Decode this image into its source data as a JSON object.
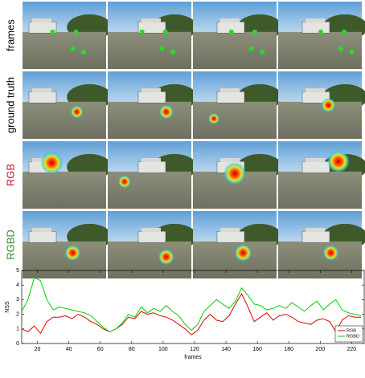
{
  "rows": [
    {
      "label": "frames",
      "color": "#000000"
    },
    {
      "label": "ground truth",
      "color": "#000000"
    },
    {
      "label": "RGB",
      "color": "#c8102e"
    },
    {
      "label": "RGBD",
      "color": "#2e8b22"
    }
  ],
  "chart_data": {
    "type": "line",
    "xlabel": "frames",
    "ylabel": "NSS",
    "x": [
      10,
      14,
      18,
      22,
      26,
      30,
      34,
      38,
      42,
      46,
      50,
      54,
      58,
      62,
      66,
      70,
      74,
      78,
      82,
      86,
      90,
      94,
      98,
      102,
      106,
      110,
      114,
      118,
      122,
      126,
      130,
      134,
      138,
      142,
      146,
      150,
      154,
      158,
      162,
      166,
      170,
      174,
      178,
      182,
      186,
      190,
      194,
      198,
      202,
      206,
      210,
      214,
      218,
      222,
      226
    ],
    "series": [
      {
        "name": "RGB",
        "color": "#e00000",
        "values": [
          1.0,
          0.8,
          1.2,
          0.7,
          1.5,
          1.8,
          1.8,
          1.9,
          1.7,
          2.0,
          1.8,
          1.5,
          1.3,
          1.0,
          0.8,
          1.0,
          1.3,
          1.8,
          1.7,
          2.2,
          2.0,
          2.1,
          1.9,
          1.8,
          1.6,
          1.3,
          1.0,
          0.6,
          0.9,
          1.6,
          2.0,
          1.6,
          1.5,
          1.9,
          2.7,
          3.4,
          2.5,
          1.5,
          1.8,
          2.1,
          1.6,
          1.9,
          2.0,
          1.8,
          1.5,
          1.4,
          1.3,
          1.6,
          1.7,
          1.5,
          0.8,
          1.6,
          1.9,
          1.8,
          1.8
        ]
      },
      {
        "name": "RGBD",
        "color": "#00d000",
        "values": [
          2.2,
          3.0,
          4.5,
          4.3,
          3.0,
          2.3,
          2.5,
          2.4,
          2.3,
          2.2,
          2.1,
          1.9,
          1.5,
          1.1,
          0.8,
          1.0,
          1.4,
          2.0,
          1.8,
          2.5,
          2.1,
          2.4,
          2.2,
          2.6,
          2.2,
          1.9,
          1.3,
          0.9,
          1.3,
          2.2,
          2.6,
          3.0,
          2.7,
          2.4,
          2.9,
          3.8,
          3.3,
          2.7,
          2.6,
          2.3,
          2.4,
          2.6,
          2.4,
          2.8,
          2.5,
          2.2,
          2.6,
          2.9,
          2.3,
          2.7,
          3.0,
          2.3,
          2.1,
          2.0,
          1.9
        ]
      }
    ],
    "xlim": [
      10,
      228
    ],
    "ylim": [
      0,
      5
    ],
    "xticks": [
      20,
      40,
      60,
      80,
      100,
      120,
      140,
      160,
      180,
      200,
      220
    ],
    "yticks": [
      0,
      1,
      2,
      3,
      4,
      5
    ],
    "legend": "lower right"
  }
}
